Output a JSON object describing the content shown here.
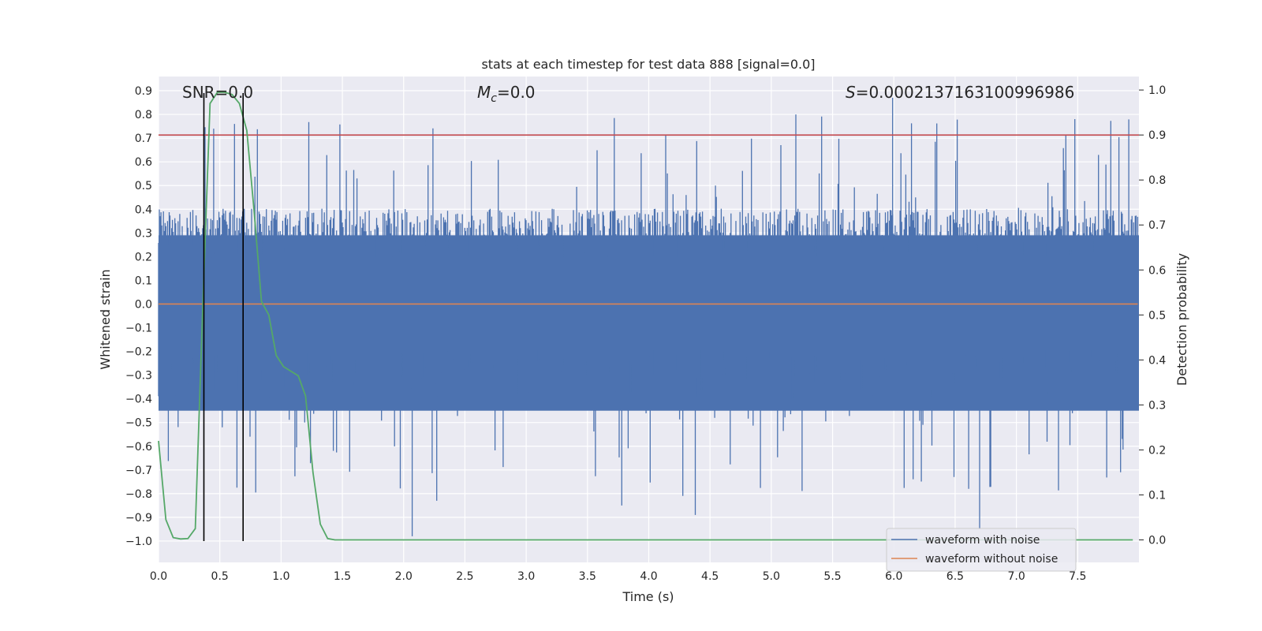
{
  "chart_data": {
    "type": "line",
    "title": "stats at each timestep for test data 888 [signal=0.0]",
    "xlabel": "Time (s)",
    "ylabel_left": "Whitened strain",
    "ylabel_right": "Detection probability",
    "xlim": [
      0.0,
      8.0
    ],
    "ylim_left": [
      -1.09,
      0.96
    ],
    "ylim_right": [
      -0.05,
      1.03
    ],
    "xticks": [
      "0.0",
      "0.5",
      "1.0",
      "1.5",
      "2.0",
      "2.5",
      "3.0",
      "3.5",
      "4.0",
      "4.5",
      "5.0",
      "5.5",
      "6.0",
      "6.5",
      "7.0",
      "7.5"
    ],
    "yticks_left": [
      "0.9",
      "0.8",
      "0.7",
      "0.6",
      "0.5",
      "0.4",
      "0.3",
      "0.2",
      "0.1",
      "0.0",
      "−0.1",
      "−0.2",
      "−0.3",
      "−0.4",
      "−0.5",
      "−0.6",
      "−0.7",
      "−0.8",
      "−0.9",
      "−1.0"
    ],
    "yticks_right": [
      "1.0",
      "0.9",
      "0.8",
      "0.7",
      "0.6",
      "0.5",
      "0.4",
      "0.3",
      "0.2",
      "0.1",
      "0.0"
    ],
    "annotations": {
      "snr": "SNR=0.0",
      "mc_symbol": "M",
      "mc_sub": "c",
      "mc_value": "=0.0",
      "s_symbol": "S",
      "s_value": "=0.0002137163100996986"
    },
    "threshold": {
      "name": "threshold",
      "value": 0.9,
      "axis": "right",
      "color": "#c44e52"
    },
    "vertical_lines": [
      0.37,
      0.69
    ],
    "series": [
      {
        "name": "waveform with noise",
        "axis": "left",
        "color": "#4c72b0",
        "kind": "noise",
        "typical_upper": 0.35,
        "typical_lower": -0.35,
        "max": 0.87,
        "min": -0.98,
        "sample_peaks": [
          {
            "t": 2.07,
            "v": -0.98
          },
          {
            "t": 5.99,
            "v": 0.87
          },
          {
            "t": 6.7,
            "v": -0.95
          },
          {
            "t": 0.62,
            "v": 0.76
          },
          {
            "t": 4.38,
            "v": -0.89
          },
          {
            "t": 5.2,
            "v": 0.8
          },
          {
            "t": 3.78,
            "v": -0.85
          },
          {
            "t": 2.27,
            "v": -0.83
          },
          {
            "t": 0.45,
            "v": 0.74
          }
        ]
      },
      {
        "name": "waveform without noise",
        "axis": "left",
        "color": "#dd8452",
        "values_t": [
          0.0,
          7.99
        ],
        "values": [
          0.0,
          0.0
        ]
      },
      {
        "name": "detection probability",
        "axis": "right",
        "color": "#55a868",
        "t": [
          0.0,
          0.06,
          0.12,
          0.18,
          0.24,
          0.3,
          0.36,
          0.42,
          0.48,
          0.54,
          0.6,
          0.66,
          0.72,
          0.78,
          0.84,
          0.9,
          0.96,
          1.02,
          1.08,
          1.14,
          1.2,
          1.26,
          1.32,
          1.38,
          1.44,
          1.5,
          7.95
        ],
        "values": [
          0.22,
          0.045,
          0.005,
          0.002,
          0.003,
          0.025,
          0.51,
          0.97,
          0.995,
          0.995,
          0.99,
          0.97,
          0.91,
          0.73,
          0.53,
          0.5,
          0.41,
          0.385,
          0.375,
          0.365,
          0.32,
          0.15,
          0.035,
          0.003,
          0.0,
          0.0,
          0.0
        ]
      }
    ],
    "legend": {
      "placement": "bottom-right",
      "entries": [
        "waveform with noise",
        "waveform without noise"
      ]
    }
  }
}
